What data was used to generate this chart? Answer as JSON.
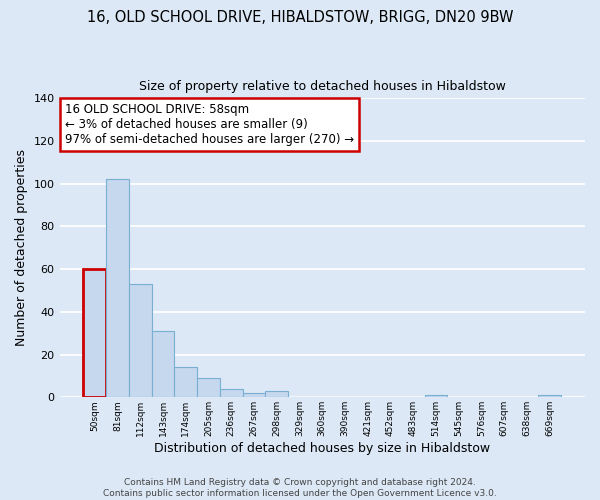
{
  "title": "16, OLD SCHOOL DRIVE, HIBALDSTOW, BRIGG, DN20 9BW",
  "subtitle": "Size of property relative to detached houses in Hibaldstow",
  "xlabel": "Distribution of detached houses by size in Hibaldstow",
  "ylabel": "Number of detached properties",
  "bar_labels": [
    "50sqm",
    "81sqm",
    "112sqm",
    "143sqm",
    "174sqm",
    "205sqm",
    "236sqm",
    "267sqm",
    "298sqm",
    "329sqm",
    "360sqm",
    "390sqm",
    "421sqm",
    "452sqm",
    "483sqm",
    "514sqm",
    "545sqm",
    "576sqm",
    "607sqm",
    "638sqm",
    "669sqm"
  ],
  "bar_values": [
    60,
    102,
    53,
    31,
    14,
    9,
    4,
    2,
    3,
    0,
    0,
    0,
    0,
    0,
    0,
    1,
    0,
    0,
    0,
    0,
    1
  ],
  "bar_color": "#c5d8ee",
  "bar_edge_color": "#7aafd4",
  "highlight_bar_index": 0,
  "highlight_bar_edge_color": "#cc0000",
  "ylim": [
    0,
    140
  ],
  "yticks": [
    0,
    20,
    40,
    60,
    80,
    100,
    120,
    140
  ],
  "annotation_title": "16 OLD SCHOOL DRIVE: 58sqm",
  "annotation_line1": "← 3% of detached houses are smaller (9)",
  "annotation_line2": "97% of semi-detached houses are larger (270) →",
  "annotation_box_color": "#ffffff",
  "annotation_box_edge_color": "#cc0000",
  "footer_line1": "Contains HM Land Registry data © Crown copyright and database right 2024.",
  "footer_line2": "Contains public sector information licensed under the Open Government Licence v3.0.",
  "background_color": "#dce8f5",
  "plot_bg_color": "#dce8f5",
  "grid_color": "#ffffff",
  "title_fontsize": 10.5,
  "axis_label_fontsize": 9,
  "tick_fontsize": 8
}
